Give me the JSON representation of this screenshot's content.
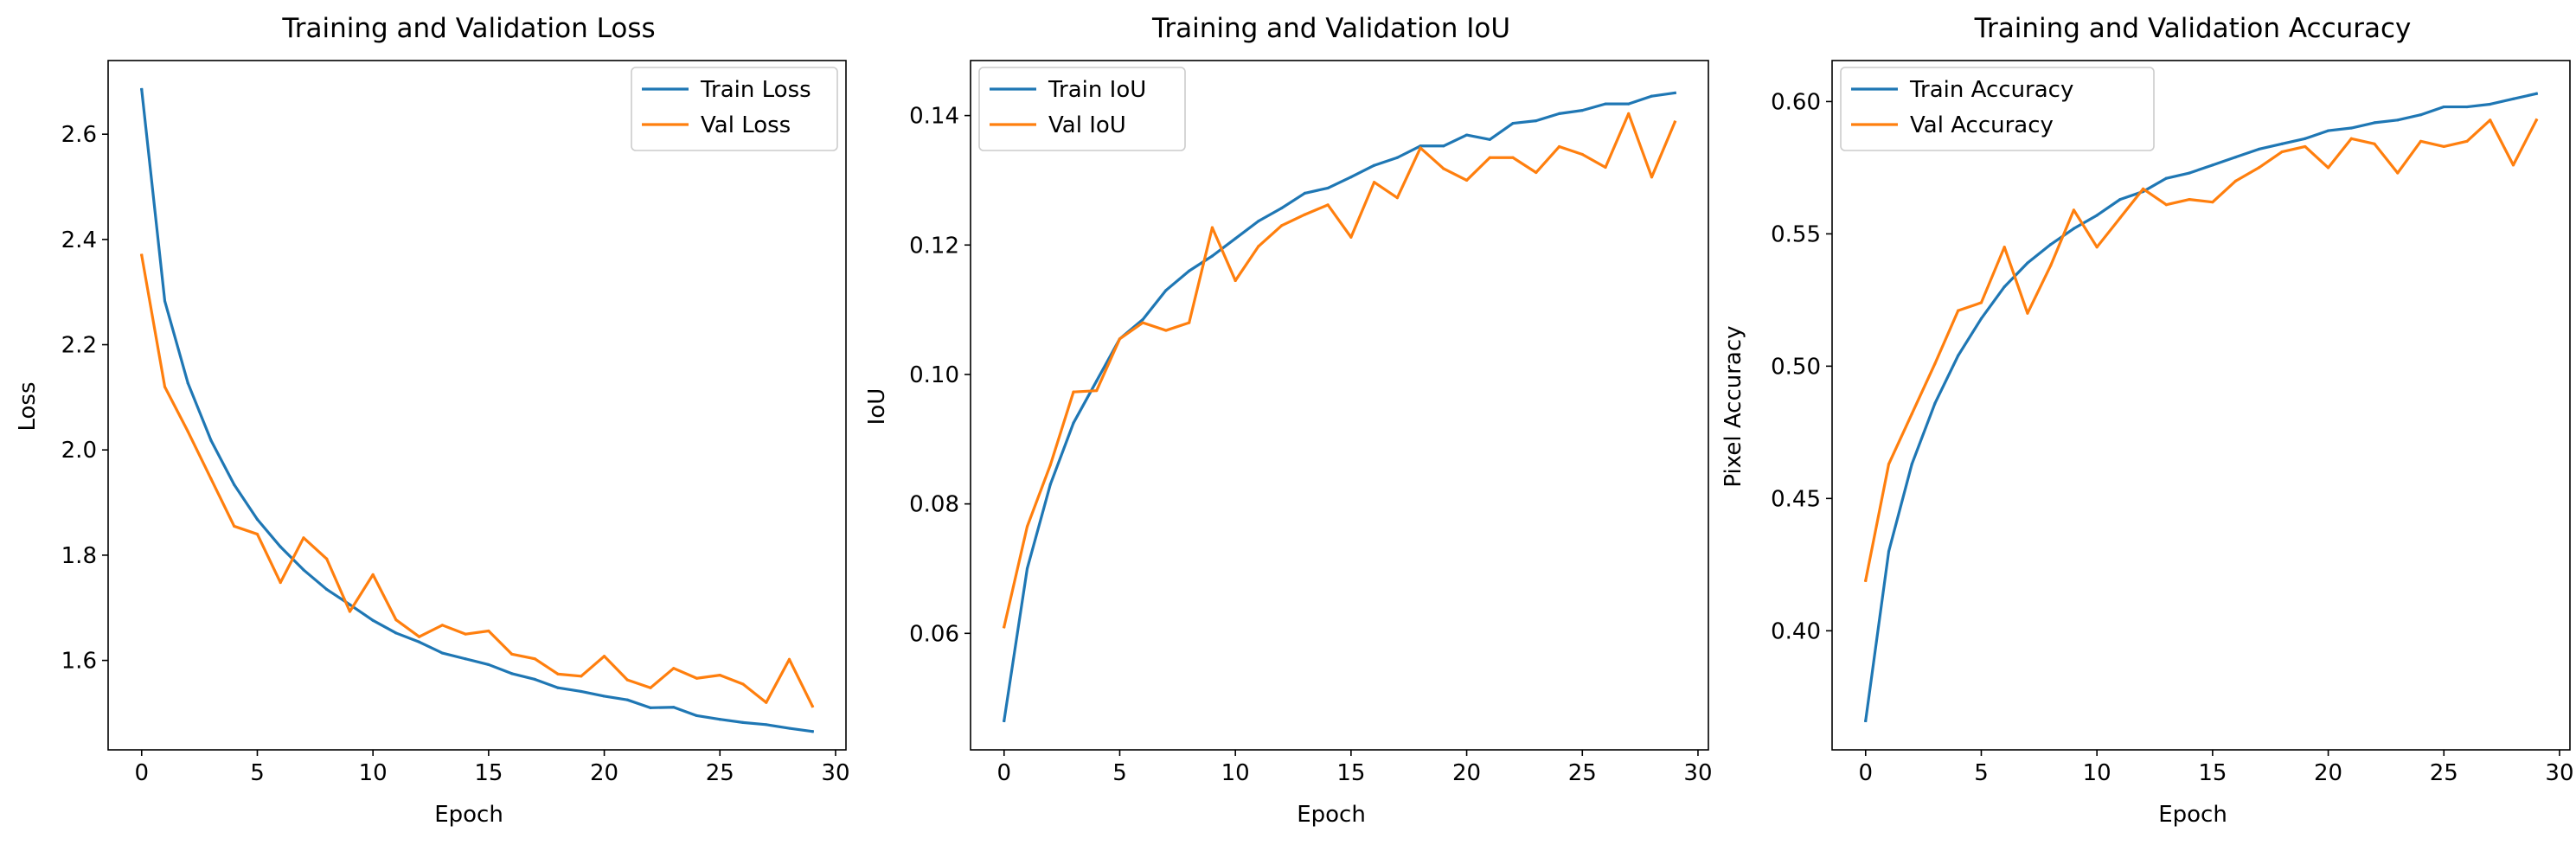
{
  "colors": {
    "series_0": "#1f77b4",
    "series_1": "#ff7f0e"
  },
  "chart_data": [
    {
      "type": "line",
      "title": "Training and Validation Loss",
      "xlabel": "Epoch",
      "ylabel": "Loss",
      "xlim": [
        -1.45,
        30.45
      ],
      "ylim": [
        1.43,
        2.74
      ],
      "xticks": [
        0,
        5,
        10,
        15,
        20,
        25,
        30
      ],
      "yticks": [
        1.6,
        1.8,
        2.0,
        2.2,
        2.4,
        2.6
      ],
      "ytick_decimals": 1,
      "legend_position": "upper right",
      "grid": false,
      "x": [
        0,
        1,
        2,
        3,
        4,
        5,
        6,
        7,
        8,
        9,
        10,
        11,
        12,
        13,
        14,
        15,
        16,
        17,
        18,
        19,
        20,
        21,
        22,
        23,
        24,
        25,
        26,
        27,
        28,
        29
      ],
      "series": [
        {
          "name": "Train Loss",
          "values": [
            2.685,
            2.283,
            2.127,
            2.018,
            1.934,
            1.868,
            1.816,
            1.772,
            1.735,
            1.706,
            1.676,
            1.652,
            1.635,
            1.614,
            1.603,
            1.592,
            1.575,
            1.564,
            1.548,
            1.541,
            1.532,
            1.525,
            1.51,
            1.511,
            1.495,
            1.488,
            1.482,
            1.478,
            1.471,
            1.465
          ]
        },
        {
          "name": "Val Loss",
          "values": [
            2.37,
            2.12,
            2.035,
            1.945,
            1.855,
            1.84,
            1.748,
            1.833,
            1.793,
            1.693,
            1.763,
            1.677,
            1.645,
            1.667,
            1.65,
            1.656,
            1.612,
            1.603,
            1.574,
            1.57,
            1.608,
            1.563,
            1.548,
            1.585,
            1.566,
            1.572,
            1.555,
            1.52,
            1.602,
            1.513
          ]
        }
      ]
    },
    {
      "type": "line",
      "title": "Training and Validation IoU",
      "xlabel": "Epoch",
      "ylabel": "IoU",
      "xlim": [
        -1.45,
        30.45
      ],
      "ylim": [
        0.042,
        0.1485
      ],
      "xticks": [
        0,
        5,
        10,
        15,
        20,
        25,
        30
      ],
      "yticks": [
        0.06,
        0.08,
        0.1,
        0.12,
        0.14
      ],
      "ytick_decimals": 2,
      "legend_position": "upper left",
      "grid": false,
      "x": [
        0,
        1,
        2,
        3,
        4,
        5,
        6,
        7,
        8,
        9,
        10,
        11,
        12,
        13,
        14,
        15,
        16,
        17,
        18,
        19,
        20,
        21,
        22,
        23,
        24,
        25,
        26,
        27,
        28,
        29
      ],
      "series": [
        {
          "name": "Train IoU",
          "values": [
            0.0465,
            0.07,
            0.083,
            0.0925,
            0.099,
            0.1055,
            0.1085,
            0.113,
            0.116,
            0.1183,
            0.121,
            0.1237,
            0.1257,
            0.128,
            0.1288,
            0.1305,
            0.1323,
            0.1335,
            0.1353,
            0.1353,
            0.137,
            0.1363,
            0.1388,
            0.1392,
            0.1403,
            0.1408,
            0.1418,
            0.1418,
            0.143,
            0.1435
          ]
        },
        {
          "name": "Val IoU",
          "values": [
            0.061,
            0.0765,
            0.086,
            0.0973,
            0.0975,
            0.1055,
            0.108,
            0.1068,
            0.108,
            0.1227,
            0.1145,
            0.1198,
            0.123,
            0.1247,
            0.1262,
            0.1212,
            0.1297,
            0.1273,
            0.135,
            0.1318,
            0.13,
            0.1335,
            0.1335,
            0.1312,
            0.1352,
            0.134,
            0.132,
            0.1403,
            0.1305,
            0.139
          ]
        }
      ]
    },
    {
      "type": "line",
      "title": "Training and Validation Accuracy",
      "xlabel": "Epoch",
      "ylabel": "Pixel Accuracy",
      "xlim": [
        -1.45,
        30.45
      ],
      "ylim": [
        0.355,
        0.6155
      ],
      "xticks": [
        0,
        5,
        10,
        15,
        20,
        25,
        30
      ],
      "yticks": [
        0.4,
        0.45,
        0.5,
        0.55,
        0.6
      ],
      "ytick_decimals": 2,
      "legend_position": "upper left",
      "grid": false,
      "x": [
        0,
        1,
        2,
        3,
        4,
        5,
        6,
        7,
        8,
        9,
        10,
        11,
        12,
        13,
        14,
        15,
        16,
        17,
        18,
        19,
        20,
        21,
        22,
        23,
        24,
        25,
        26,
        27,
        28,
        29
      ],
      "series": [
        {
          "name": "Train Accuracy",
          "values": [
            0.366,
            0.43,
            0.463,
            0.486,
            0.504,
            0.518,
            0.53,
            0.539,
            0.546,
            0.552,
            0.557,
            0.563,
            0.566,
            0.571,
            0.573,
            0.576,
            0.579,
            0.582,
            0.584,
            0.586,
            0.589,
            0.59,
            0.592,
            0.593,
            0.595,
            0.598,
            0.598,
            0.599,
            0.601,
            0.603
          ]
        },
        {
          "name": "Val Accuracy",
          "values": [
            0.419,
            0.463,
            0.482,
            0.501,
            0.521,
            0.524,
            0.545,
            0.52,
            0.538,
            0.559,
            0.545,
            0.556,
            0.567,
            0.561,
            0.563,
            0.562,
            0.57,
            0.575,
            0.581,
            0.583,
            0.575,
            0.586,
            0.584,
            0.573,
            0.585,
            0.583,
            0.585,
            0.593,
            0.576,
            0.593
          ]
        }
      ]
    }
  ]
}
